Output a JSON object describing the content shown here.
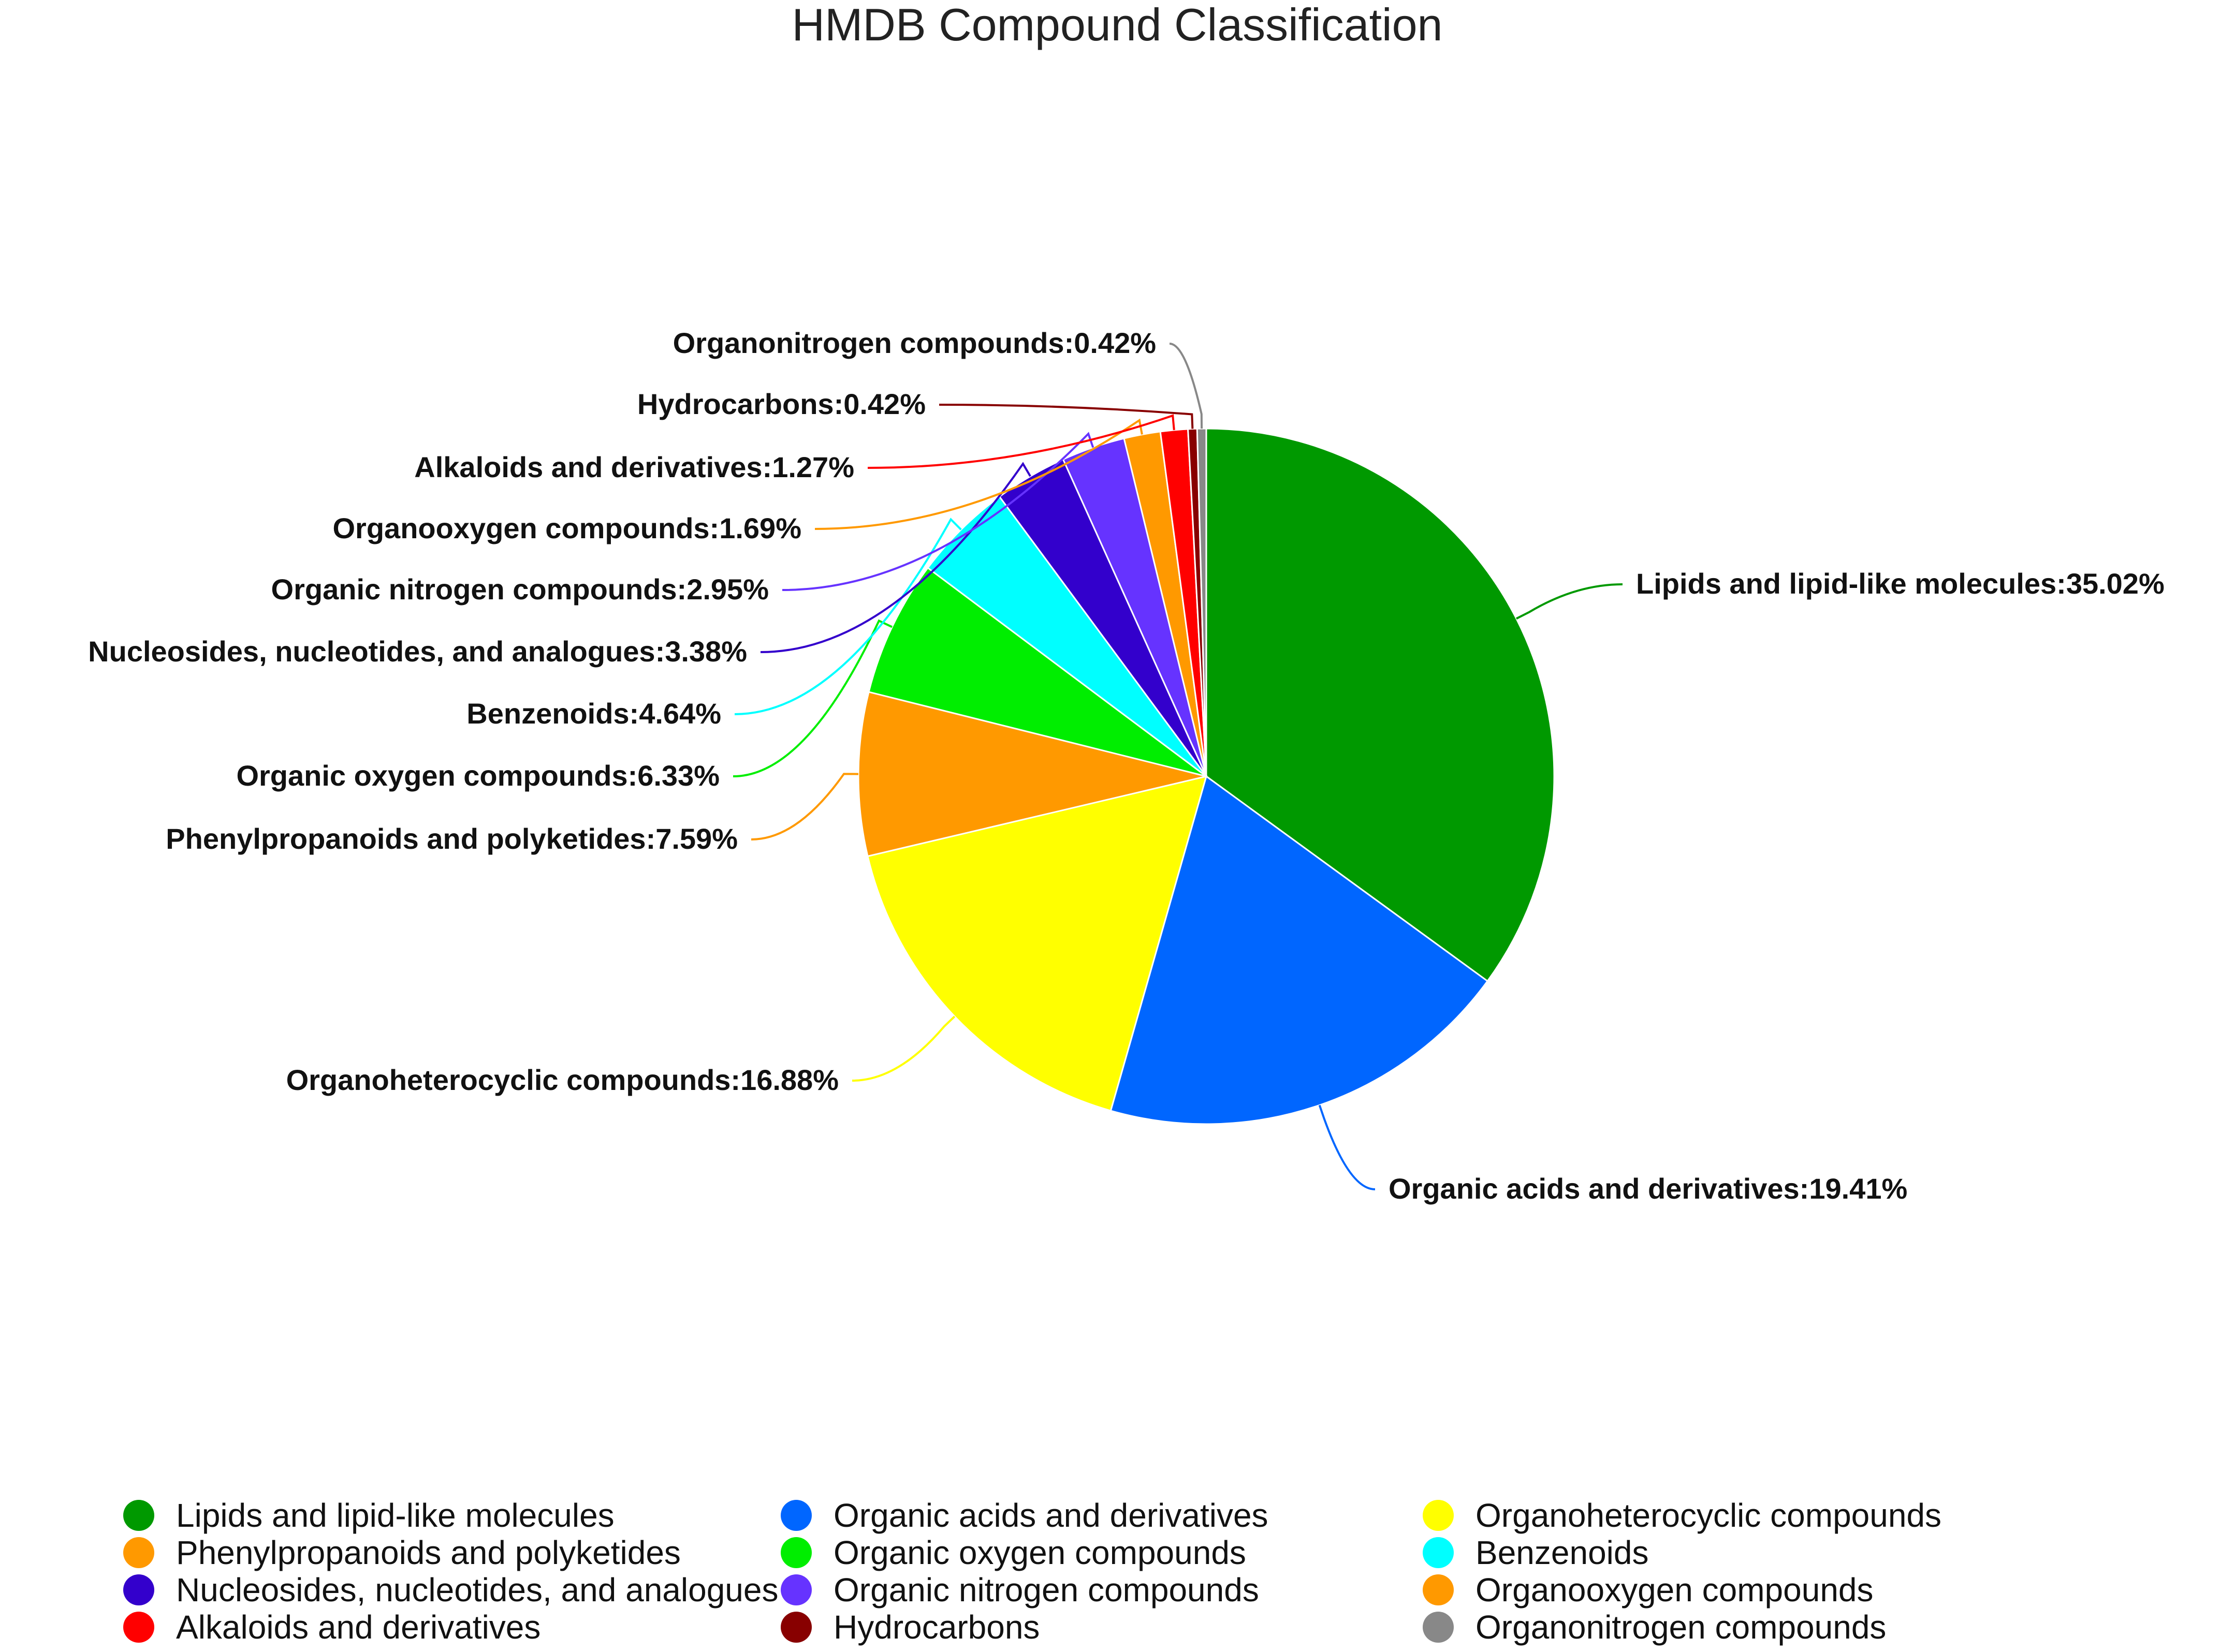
{
  "chart_data": {
    "type": "pie",
    "title": "HMDB Compound Classification",
    "legend_position": "bottom",
    "slices": [
      {
        "name": "Lipids and lipid-like molecules",
        "value": 35.02,
        "label": "Lipids and lipid-like molecules:35.02%",
        "color": "#009900"
      },
      {
        "name": "Organic acids and derivatives",
        "value": 19.41,
        "label": "Organic acids and derivatives:19.41%",
        "color": "#0066ff"
      },
      {
        "name": "Organoheterocyclic compounds",
        "value": 16.88,
        "label": "Organoheterocyclic compounds:16.88%",
        "color": "#ffff00"
      },
      {
        "name": "Phenylpropanoids and polyketides",
        "value": 7.59,
        "label": "Phenylpropanoids and polyketides:7.59%",
        "color": "#ff9900"
      },
      {
        "name": "Organic oxygen compounds",
        "value": 6.33,
        "label": "Organic oxygen compounds:6.33%",
        "color": "#00ee00"
      },
      {
        "name": "Benzenoids",
        "value": 4.64,
        "label": "Benzenoids:4.64%",
        "color": "#00ffff"
      },
      {
        "name": "Nucleosides, nucleotides, and analogues",
        "value": 3.38,
        "label": "Nucleosides, nucleotides, and analogues:3.38%",
        "color": "#3300cc"
      },
      {
        "name": "Organic nitrogen compounds",
        "value": 2.95,
        "label": "Organic nitrogen compounds:2.95%",
        "color": "#6633ff"
      },
      {
        "name": "Organooxygen compounds",
        "value": 1.69,
        "label": "Organooxygen compounds:1.69%",
        "color": "#ff9900"
      },
      {
        "name": "Alkaloids and derivatives",
        "value": 1.27,
        "label": "Alkaloids and derivatives:1.27%",
        "color": "#ff0000"
      },
      {
        "name": "Hydrocarbons",
        "value": 0.42,
        "label": "Hydrocarbons:0.42%",
        "color": "#880000"
      },
      {
        "name": "Organonitrogen compounds",
        "value": 0.42,
        "label": "Organonitrogen compounds:0.42%",
        "color": "#888888"
      }
    ]
  }
}
